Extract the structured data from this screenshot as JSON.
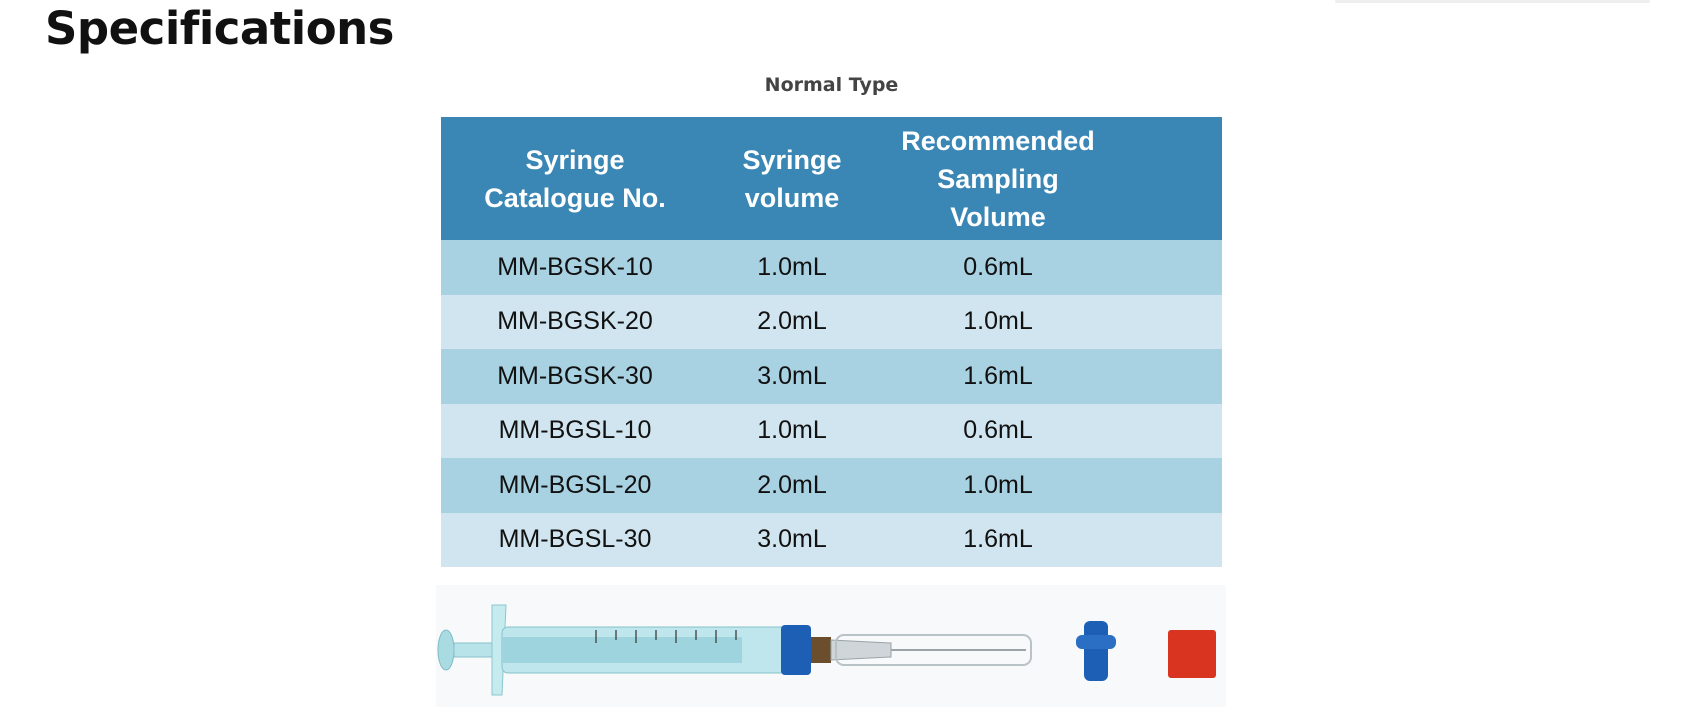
{
  "header": {
    "title": "Specifications"
  },
  "table": {
    "caption": "Normal Type",
    "columns": [
      [
        "Syringe",
        "Catalogue No."
      ],
      [
        "Syringe",
        "volume"
      ],
      [
        "Recommended",
        "Sampling",
        "Volume"
      ]
    ],
    "rows": [
      [
        "MM-BGSK-10",
        "1.0mL",
        "0.6mL"
      ],
      [
        "MM-BGSK-20",
        "2.0mL",
        "1.0mL"
      ],
      [
        "MM-BGSK-30",
        "3.0mL",
        "1.6mL"
      ],
      [
        "MM-BGSL-10",
        "1.0mL",
        "0.6mL"
      ],
      [
        "MM-BGSL-20",
        "2.0mL",
        "1.0mL"
      ],
      [
        "MM-BGSL-30",
        "3.0mL",
        "1.6mL"
      ]
    ]
  }
}
